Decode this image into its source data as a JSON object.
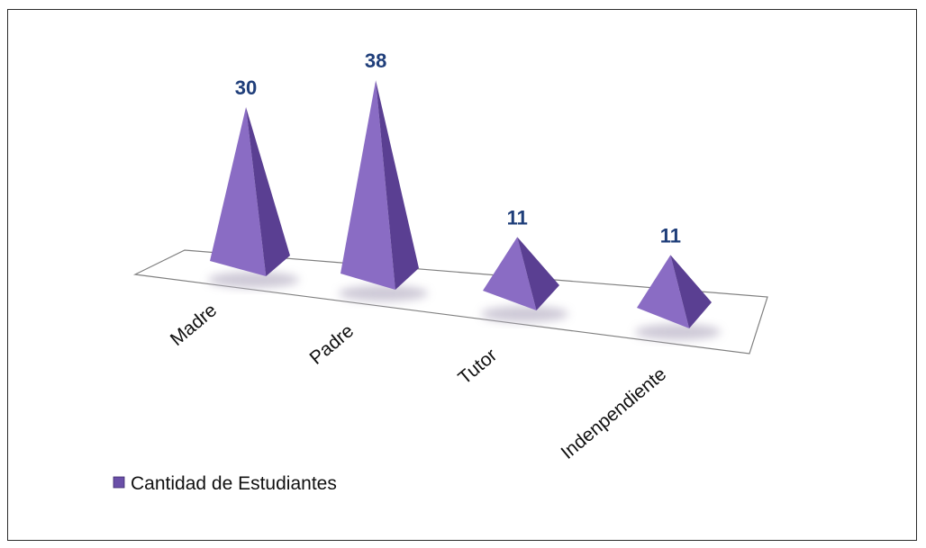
{
  "chart_data": {
    "type": "bar",
    "shape": "pyramid-3d",
    "categories": [
      "Madre",
      "Padre",
      "Tutor",
      "Indenpendiente"
    ],
    "series": [
      {
        "name": "Cantidad de Estudiantes",
        "values": [
          30,
          38,
          11,
          11
        ]
      }
    ],
    "data_labels": true,
    "legend": "bottom-left",
    "grid": false,
    "colors": {
      "face_light": "#8a6cc4",
      "face_dark": "#5a3f92",
      "label": "#1f3e7a",
      "floor_edge": "#7a7a7a"
    }
  }
}
